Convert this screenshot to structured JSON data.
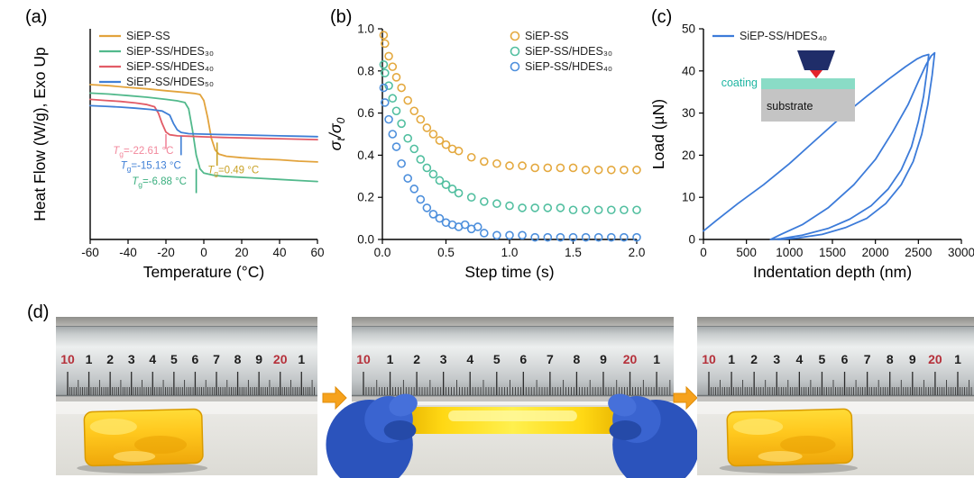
{
  "figure": {
    "panels": {
      "a": {
        "label": "(a)"
      },
      "b": {
        "label": "(b)"
      },
      "c": {
        "label": "(c)"
      },
      "d": {
        "label": "(d)"
      }
    }
  },
  "chart_data": [
    {
      "panel": "a",
      "type": "line",
      "xlabel": "Temperature (°C)",
      "ylabel": "Heat Flow (W/g), Exo Up",
      "xlim": [
        -60,
        60
      ],
      "xticks": [
        -60,
        -40,
        -20,
        0,
        20,
        40,
        60
      ],
      "xtick_labels": [
        "-60",
        "-40",
        "-20",
        "0",
        "20",
        "40",
        "60"
      ],
      "ylim": [
        0,
        1
      ],
      "yticks": [],
      "ytick_labels": [],
      "grid": false,
      "legend": {
        "position": "top-left",
        "marker": "line"
      },
      "series": [
        {
          "name": "SiEP-SS",
          "color": "#E2A33C",
          "points": [
            [
              -60,
              0.735
            ],
            [
              -50,
              0.73
            ],
            [
              -40,
              0.722
            ],
            [
              -30,
              0.715
            ],
            [
              -20,
              0.706
            ],
            [
              -10,
              0.698
            ],
            [
              -5,
              0.693
            ],
            [
              -2,
              0.688
            ],
            [
              0,
              0.66
            ],
            [
              2,
              0.58
            ],
            [
              4,
              0.48
            ],
            [
              6,
              0.425
            ],
            [
              8,
              0.405
            ],
            [
              12,
              0.395
            ],
            [
              20,
              0.388
            ],
            [
              30,
              0.382
            ],
            [
              40,
              0.378
            ],
            [
              50,
              0.372
            ],
            [
              60,
              0.368
            ]
          ]
        },
        {
          "name": "SiEP-SS/HDES₃₀",
          "color": "#52B98C",
          "points": [
            [
              -60,
              0.695
            ],
            [
              -50,
              0.69
            ],
            [
              -40,
              0.683
            ],
            [
              -30,
              0.675
            ],
            [
              -20,
              0.665
            ],
            [
              -14,
              0.658
            ],
            [
              -10,
              0.65
            ],
            [
              -8,
              0.62
            ],
            [
              -6,
              0.52
            ],
            [
              -4,
              0.4
            ],
            [
              -2,
              0.335
            ],
            [
              0,
              0.315
            ],
            [
              5,
              0.305
            ],
            [
              10,
              0.3
            ],
            [
              20,
              0.295
            ],
            [
              30,
              0.29
            ],
            [
              40,
              0.285
            ],
            [
              50,
              0.28
            ],
            [
              60,
              0.275
            ]
          ]
        },
        {
          "name": "SiEP-SS/HDES₄₀",
          "color": "#E25B66",
          "points": [
            [
              -60,
              0.665
            ],
            [
              -52,
              0.66
            ],
            [
              -44,
              0.655
            ],
            [
              -36,
              0.648
            ],
            [
              -30,
              0.64
            ],
            [
              -26,
              0.63
            ],
            [
              -24,
              0.6
            ],
            [
              -22,
              0.55
            ],
            [
              -20,
              0.51
            ],
            [
              -18,
              0.497
            ],
            [
              -14,
              0.492
            ],
            [
              -8,
              0.49
            ],
            [
              0,
              0.487
            ],
            [
              10,
              0.484
            ],
            [
              20,
              0.482
            ],
            [
              30,
              0.48
            ],
            [
              40,
              0.478
            ],
            [
              50,
              0.476
            ],
            [
              60,
              0.474
            ]
          ]
        },
        {
          "name": "SiEP-SS/HDES₅₀",
          "color": "#3F7FD6",
          "points": [
            [
              -60,
              0.635
            ],
            [
              -52,
              0.632
            ],
            [
              -44,
              0.628
            ],
            [
              -36,
              0.623
            ],
            [
              -28,
              0.617
            ],
            [
              -22,
              0.61
            ],
            [
              -18,
              0.59
            ],
            [
              -16,
              0.55
            ],
            [
              -14,
              0.52
            ],
            [
              -12,
              0.508
            ],
            [
              -8,
              0.502
            ],
            [
              0,
              0.5
            ],
            [
              10,
              0.498
            ],
            [
              20,
              0.496
            ],
            [
              30,
              0.494
            ],
            [
              40,
              0.492
            ],
            [
              50,
              0.49
            ],
            [
              60,
              0.488
            ]
          ]
        }
      ],
      "annotations": [
        {
          "prefix": "T",
          "prefix_sub": "g",
          "text": "=-22.61 °C",
          "color": "#F2889C",
          "x": -48,
          "y": 0.405,
          "tick_x": -20,
          "tick_y1": 0.5,
          "tick_y2": 0.43
        },
        {
          "prefix": "T",
          "prefix_sub": "g",
          "text": "=-15.13 °C",
          "color": "#3F7FD6",
          "x": -44,
          "y": 0.335,
          "tick_x": -12,
          "tick_y1": 0.49,
          "tick_y2": 0.4
        },
        {
          "prefix": "T",
          "prefix_sub": "g",
          "text": "=-6.88 °C",
          "color": "#3BAF7F",
          "x": -38,
          "y": 0.26,
          "tick_x": -4,
          "tick_y1": 0.335,
          "tick_y2": 0.22
        },
        {
          "prefix": "T",
          "prefix_sub": "g",
          "text": "=0.49 °C",
          "color": "#C9A227",
          "x": 2,
          "y": 0.315,
          "tick_x": 7,
          "tick_y1": 0.46,
          "tick_y2": 0.35
        }
      ]
    },
    {
      "panel": "b",
      "type": "scatter",
      "xlabel": "Step time (s)",
      "ylabel_parts": [
        {
          "t": "σ"
        },
        {
          "t": "t",
          "sub": true
        },
        {
          "t": "/σ"
        },
        {
          "t": "0",
          "sub": true
        }
      ],
      "xlim": [
        0,
        2
      ],
      "xticks": [
        0,
        0.5,
        1,
        1.5,
        2
      ],
      "xtick_labels": [
        "0.0",
        "0.5",
        "1.0",
        "1.5",
        "2.0"
      ],
      "ylim": [
        0,
        1
      ],
      "yticks": [
        0,
        0.2,
        0.4,
        0.6,
        0.8,
        1
      ],
      "ytick_labels": [
        "0.0",
        "0.2",
        "0.4",
        "0.6",
        "0.8",
        "1.0"
      ],
      "grid": false,
      "legend": {
        "position": "top-right",
        "marker": "circle"
      },
      "series": [
        {
          "name": "SiEP-SS",
          "color": "#E4A93F",
          "points": [
            [
              0.01,
              0.97
            ],
            [
              0.02,
              0.93
            ],
            [
              0.05,
              0.87
            ],
            [
              0.08,
              0.82
            ],
            [
              0.11,
              0.77
            ],
            [
              0.15,
              0.72
            ],
            [
              0.2,
              0.66
            ],
            [
              0.25,
              0.61
            ],
            [
              0.3,
              0.57
            ],
            [
              0.35,
              0.53
            ],
            [
              0.4,
              0.5
            ],
            [
              0.45,
              0.47
            ],
            [
              0.5,
              0.45
            ],
            [
              0.55,
              0.43
            ],
            [
              0.6,
              0.42
            ],
            [
              0.7,
              0.39
            ],
            [
              0.8,
              0.37
            ],
            [
              0.9,
              0.36
            ],
            [
              1.0,
              0.35
            ],
            [
              1.1,
              0.35
            ],
            [
              1.2,
              0.34
            ],
            [
              1.3,
              0.34
            ],
            [
              1.4,
              0.34
            ],
            [
              1.5,
              0.34
            ],
            [
              1.6,
              0.33
            ],
            [
              1.7,
              0.33
            ],
            [
              1.8,
              0.33
            ],
            [
              1.9,
              0.33
            ],
            [
              2.0,
              0.33
            ]
          ]
        },
        {
          "name": "SiEP-SS/HDES₃₀",
          "color": "#52BFA0",
          "points": [
            [
              0.01,
              0.83
            ],
            [
              0.02,
              0.79
            ],
            [
              0.05,
              0.73
            ],
            [
              0.08,
              0.67
            ],
            [
              0.11,
              0.61
            ],
            [
              0.15,
              0.55
            ],
            [
              0.2,
              0.48
            ],
            [
              0.25,
              0.43
            ],
            [
              0.3,
              0.38
            ],
            [
              0.35,
              0.34
            ],
            [
              0.4,
              0.31
            ],
            [
              0.45,
              0.28
            ],
            [
              0.5,
              0.26
            ],
            [
              0.55,
              0.24
            ],
            [
              0.6,
              0.22
            ],
            [
              0.7,
              0.2
            ],
            [
              0.8,
              0.18
            ],
            [
              0.9,
              0.17
            ],
            [
              1.0,
              0.16
            ],
            [
              1.1,
              0.15
            ],
            [
              1.2,
              0.15
            ],
            [
              1.3,
              0.15
            ],
            [
              1.4,
              0.15
            ],
            [
              1.5,
              0.14
            ],
            [
              1.6,
              0.14
            ],
            [
              1.7,
              0.14
            ],
            [
              1.8,
              0.14
            ],
            [
              1.9,
              0.14
            ],
            [
              2.0,
              0.14
            ]
          ]
        },
        {
          "name": "SiEP-SS/HDES₄₀",
          "color": "#4D8FDC",
          "points": [
            [
              0.01,
              0.72
            ],
            [
              0.02,
              0.65
            ],
            [
              0.05,
              0.57
            ],
            [
              0.08,
              0.5
            ],
            [
              0.11,
              0.44
            ],
            [
              0.15,
              0.36
            ],
            [
              0.2,
              0.29
            ],
            [
              0.25,
              0.24
            ],
            [
              0.3,
              0.19
            ],
            [
              0.35,
              0.15
            ],
            [
              0.4,
              0.12
            ],
            [
              0.45,
              0.1
            ],
            [
              0.5,
              0.08
            ],
            [
              0.55,
              0.07
            ],
            [
              0.6,
              0.06
            ],
            [
              0.65,
              0.07
            ],
            [
              0.7,
              0.05
            ],
            [
              0.75,
              0.06
            ],
            [
              0.8,
              0.03
            ],
            [
              0.9,
              0.02
            ],
            [
              1.0,
              0.02
            ],
            [
              1.1,
              0.02
            ],
            [
              1.2,
              0.01
            ],
            [
              1.3,
              0.01
            ],
            [
              1.4,
              0.01
            ],
            [
              1.5,
              0.01
            ],
            [
              1.6,
              0.01
            ],
            [
              1.7,
              0.01
            ],
            [
              1.8,
              0.01
            ],
            [
              1.9,
              0.01
            ],
            [
              2.0,
              0.01
            ]
          ]
        }
      ]
    },
    {
      "panel": "c",
      "type": "line",
      "xlabel": "Indentation depth (nm)",
      "ylabel": "Load (µN)",
      "xlim": [
        0,
        3000
      ],
      "xticks": [
        0,
        500,
        1000,
        1500,
        2000,
        2500,
        3000
      ],
      "xtick_labels": [
        "0",
        "500",
        "1000",
        "1500",
        "2000",
        "2500",
        "3000"
      ],
      "ylim": [
        0,
        50
      ],
      "yticks": [
        0,
        10,
        20,
        30,
        40,
        50
      ],
      "ytick_labels": [
        "0",
        "10",
        "20",
        "30",
        "40",
        "50"
      ],
      "grid": false,
      "legend": {
        "position": "top-left",
        "marker": "line"
      },
      "series": [
        {
          "name": "SiEP-SS/HDES₄₀",
          "color": "#3C7BD9",
          "points": [
            [
              0,
              2
            ],
            [
              150,
              4.5
            ],
            [
              400,
              8.5
            ],
            [
              700,
              13
            ],
            [
              1000,
              18
            ],
            [
              1300,
              23.5
            ],
            [
              1600,
              29
            ],
            [
              1900,
              34
            ],
            [
              2150,
              38
            ],
            [
              2350,
              41
            ],
            [
              2480,
              42.8
            ],
            [
              2550,
              43.5
            ],
            [
              2620,
              43.9
            ],
            [
              2600,
              40
            ],
            [
              2560,
              34
            ],
            [
              2500,
              28
            ],
            [
              2420,
              22
            ],
            [
              2300,
              16.5
            ],
            [
              2150,
              12
            ],
            [
              1950,
              8
            ],
            [
              1700,
              4.8
            ],
            [
              1450,
              2.6
            ],
            [
              1150,
              1
            ],
            [
              900,
              0.2
            ],
            [
              780,
              0
            ],
            [
              900,
              1.2
            ],
            [
              1150,
              3.5
            ],
            [
              1450,
              7.5
            ],
            [
              1750,
              13
            ],
            [
              2000,
              19
            ],
            [
              2200,
              25.5
            ],
            [
              2380,
              32
            ],
            [
              2500,
              37.5
            ],
            [
              2590,
              41.5
            ],
            [
              2650,
              43.6
            ],
            [
              2690,
              44.3
            ],
            [
              2660,
              39
            ],
            [
              2610,
              32
            ],
            [
              2540,
              25
            ],
            [
              2440,
              18.5
            ],
            [
              2300,
              13
            ],
            [
              2120,
              8.5
            ],
            [
              1900,
              5
            ],
            [
              1650,
              2.8
            ],
            [
              1380,
              1.2
            ],
            [
              1080,
              0.3
            ],
            [
              870,
              0
            ]
          ]
        }
      ],
      "inset": {
        "coating_label": "coating",
        "substrate_label": "substrate",
        "coating_color": "#8ADCC6",
        "coating_text_color": "#1FB5A2",
        "substrate_color": "#C4C4C4",
        "indenter_color": "#1F2D69",
        "tip_color": "#E3242B"
      }
    }
  ],
  "photos": {
    "ruler_numbers": [
      "10",
      "1",
      "2",
      "3",
      "4",
      "5",
      "6",
      "7",
      "8",
      "9",
      "20",
      "1"
    ],
    "red_numbers": [
      "10",
      "20"
    ],
    "items": [
      {
        "type": "relaxed",
        "name": "sample before stretching"
      },
      {
        "type": "stretched",
        "name": "sample stretched by gloved hands"
      },
      {
        "type": "relaxed",
        "name": "sample recovered"
      }
    ],
    "colors": {
      "sample": "#FFC81E",
      "glove": "#2B53BC",
      "arrow": "#F6A21D",
      "arrow_edge": "#E08D0A"
    }
  }
}
